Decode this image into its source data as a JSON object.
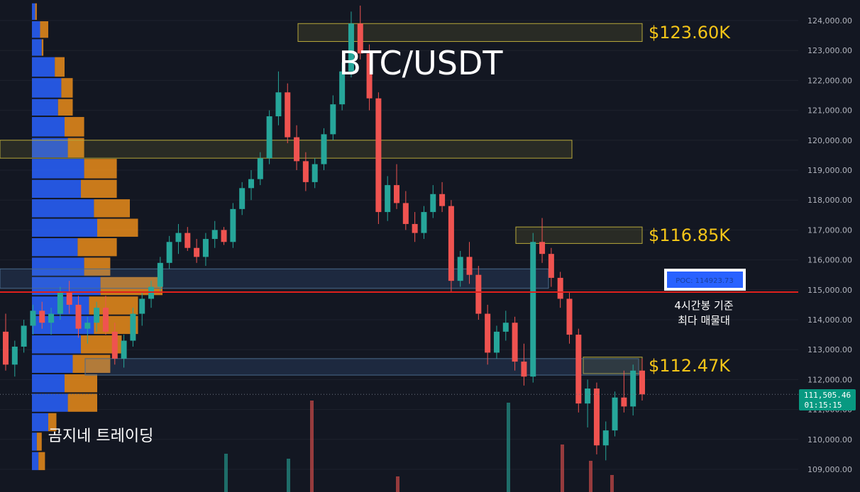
{
  "chart_data": {
    "type": "candlestick",
    "title": "BTC/USDT",
    "watermark": "곰지네 트레이딩",
    "y_axis": {
      "ylim": [
        108600,
        124700
      ],
      "ticks": [
        109000,
        110000,
        111000,
        112000,
        113000,
        114000,
        115000,
        116000,
        117000,
        118000,
        119000,
        120000,
        121000,
        122000,
        123000,
        124000
      ],
      "tick_labels": [
        "109,000.00",
        "110,000.00",
        "111,000.00",
        "112,000.00",
        "113,000.00",
        "114,000.00",
        "115,000.00",
        "116,000.00",
        "117,000.00",
        "118,000.00",
        "119,000.00",
        "120,000.00",
        "121,000.00",
        "122,000.00",
        "123,000.00",
        "124,000.00"
      ]
    },
    "current_price": {
      "value": 111505.46,
      "label": "111,505.46",
      "countdown": "01:15:15",
      "color": "#089981"
    },
    "poc": {
      "value": 114923.73,
      "label": "POC: 114923.73",
      "note_line1": "4시간봉 기준",
      "note_line2": "최다 매물대",
      "line_color": "#e0201c",
      "box_color": "#2962ff"
    },
    "levels": [
      {
        "label": "$123.60K",
        "value": 123600
      },
      {
        "label": "$116.85K",
        "value": 116850
      },
      {
        "label": "$112.47K",
        "value": 112470
      }
    ],
    "zones": [
      {
        "low": 123300,
        "high": 123900,
        "color": "yellow"
      },
      {
        "low": 119400,
        "high": 120000,
        "color": "yellow"
      },
      {
        "low": 116550,
        "high": 117100,
        "color": "yellow"
      },
      {
        "low": 112200,
        "high": 112750,
        "color": "yellow"
      },
      {
        "low": 115050,
        "high": 115700,
        "color": "blue"
      },
      {
        "low": 112150,
        "high": 112700,
        "color": "blue"
      }
    ],
    "volume_profile": [
      {
        "low": 124000,
        "high": 124600,
        "buy": 2,
        "sell": 3
      },
      {
        "low": 123400,
        "high": 124000,
        "buy": 5,
        "sell": 10
      },
      {
        "low": 122800,
        "high": 123400,
        "buy": 6,
        "sell": 7
      },
      {
        "low": 122100,
        "high": 122800,
        "buy": 14,
        "sell": 20
      },
      {
        "low": 121400,
        "high": 122100,
        "buy": 18,
        "sell": 25
      },
      {
        "low": 120800,
        "high": 121400,
        "buy": 16,
        "sell": 25
      },
      {
        "low": 120100,
        "high": 120800,
        "buy": 20,
        "sell": 32
      },
      {
        "low": 119400,
        "high": 120100,
        "buy": 22,
        "sell": 32
      },
      {
        "low": 118700,
        "high": 119400,
        "buy": 32,
        "sell": 52
      },
      {
        "low": 118050,
        "high": 118700,
        "buy": 30,
        "sell": 52
      },
      {
        "low": 117400,
        "high": 118050,
        "buy": 38,
        "sell": 60
      },
      {
        "low": 116750,
        "high": 117400,
        "buy": 40,
        "sell": 65
      },
      {
        "low": 116100,
        "high": 116750,
        "buy": 28,
        "sell": 52
      },
      {
        "low": 115450,
        "high": 116100,
        "buy": 32,
        "sell": 48
      },
      {
        "low": 114800,
        "high": 115450,
        "buy": 42,
        "sell": 80
      },
      {
        "low": 114150,
        "high": 114800,
        "buy": 35,
        "sell": 65
      },
      {
        "low": 113500,
        "high": 114150,
        "buy": 38,
        "sell": 65
      },
      {
        "low": 112850,
        "high": 113500,
        "buy": 30,
        "sell": 55
      },
      {
        "low": 112200,
        "high": 112850,
        "buy": 25,
        "sell": 48
      },
      {
        "low": 111550,
        "high": 112200,
        "buy": 20,
        "sell": 40
      },
      {
        "low": 110900,
        "high": 111550,
        "buy": 22,
        "sell": 40
      },
      {
        "low": 110250,
        "high": 110900,
        "buy": 10,
        "sell": 15
      },
      {
        "low": 109600,
        "high": 110250,
        "buy": 3,
        "sell": 6
      },
      {
        "low": 108950,
        "high": 109600,
        "buy": 4,
        "sell": 8
      }
    ],
    "candles": [
      [
        113600,
        114200,
        112300,
        112500
      ],
      [
        112500,
        113300,
        112100,
        113100
      ],
      [
        113100,
        114000,
        112900,
        113800
      ],
      [
        113800,
        114500,
        113500,
        114300
      ],
      [
        114300,
        114600,
        113700,
        113900
      ],
      [
        113900,
        114400,
        113500,
        114200
      ],
      [
        114200,
        115100,
        114000,
        114900
      ],
      [
        114900,
        115300,
        114200,
        114500
      ],
      [
        114500,
        114800,
        113400,
        113700
      ],
      [
        113700,
        114100,
        113200,
        113900
      ],
      [
        113900,
        114600,
        113600,
        114400
      ],
      [
        114400,
        114800,
        113500,
        113600
      ],
      [
        113600,
        113900,
        112500,
        112700
      ],
      [
        112700,
        113500,
        112400,
        113300
      ],
      [
        113300,
        114400,
        113100,
        114200
      ],
      [
        114200,
        114900,
        113800,
        114700
      ],
      [
        114700,
        115300,
        114400,
        115100
      ],
      [
        115100,
        116100,
        114900,
        115900
      ],
      [
        115900,
        116800,
        115700,
        116600
      ],
      [
        116600,
        117200,
        116200,
        116900
      ],
      [
        116900,
        117100,
        116300,
        116400
      ],
      [
        116400,
        116700,
        115900,
        116100
      ],
      [
        116100,
        116900,
        115800,
        116700
      ],
      [
        116700,
        117300,
        116400,
        117000
      ],
      [
        117000,
        117100,
        116500,
        116600
      ],
      [
        116600,
        117900,
        116400,
        117700
      ],
      [
        117700,
        118600,
        117500,
        118400
      ],
      [
        118400,
        119000,
        118000,
        118700
      ],
      [
        118700,
        119600,
        118500,
        119400
      ],
      [
        119400,
        121000,
        119200,
        120800
      ],
      [
        120800,
        122300,
        120500,
        121600
      ],
      [
        121600,
        121900,
        119900,
        120100
      ],
      [
        120100,
        120500,
        119000,
        119300
      ],
      [
        119300,
        119600,
        118300,
        118600
      ],
      [
        118600,
        119400,
        118400,
        119200
      ],
      [
        119200,
        120400,
        119000,
        120200
      ],
      [
        120200,
        121500,
        120000,
        121200
      ],
      [
        121200,
        122600,
        121000,
        122300
      ],
      [
        122300,
        124300,
        122100,
        123900
      ],
      [
        123900,
        124500,
        122700,
        122900
      ],
      [
        122900,
        123200,
        121000,
        121400
      ],
      [
        121400,
        121600,
        117200,
        117600
      ],
      [
        117600,
        118800,
        117300,
        118500
      ],
      [
        118500,
        119200,
        117700,
        117900
      ],
      [
        117900,
        118300,
        117000,
        117200
      ],
      [
        117200,
        117600,
        116600,
        116900
      ],
      [
        116900,
        117800,
        116700,
        117600
      ],
      [
        117600,
        118500,
        117400,
        118200
      ],
      [
        118200,
        118600,
        117600,
        117800
      ],
      [
        117800,
        118000,
        114900,
        115300
      ],
      [
        115300,
        116300,
        115100,
        116100
      ],
      [
        116100,
        116600,
        115200,
        115500
      ],
      [
        115500,
        115800,
        114000,
        114200
      ],
      [
        114200,
        114500,
        112500,
        112900
      ],
      [
        112900,
        113800,
        112700,
        113600
      ],
      [
        113600,
        114300,
        113300,
        113900
      ],
      [
        113900,
        114100,
        112300,
        112600
      ],
      [
        112600,
        113200,
        111800,
        112100
      ],
      [
        112100,
        116900,
        111900,
        116600
      ],
      [
        116600,
        117400,
        115900,
        116200
      ],
      [
        116200,
        116400,
        115100,
        115400
      ],
      [
        115400,
        115600,
        114400,
        114700
      ],
      [
        114700,
        114900,
        113200,
        113500
      ],
      [
        113500,
        113700,
        110900,
        111200
      ],
      [
        111200,
        112000,
        110400,
        111700
      ],
      [
        111700,
        111900,
        109500,
        109800
      ],
      [
        109800,
        110600,
        109300,
        110300
      ],
      [
        110300,
        111600,
        110100,
        111400
      ],
      [
        111400,
        112300,
        110900,
        111100
      ],
      [
        111100,
        112500,
        110800,
        112300
      ],
      [
        112300,
        112700,
        111300,
        111505
      ]
    ],
    "volume_bars": [
      {
        "x": 316,
        "top": 640,
        "color": "#26a69a"
      },
      {
        "x": 437,
        "top": 565,
        "color": "#ef5350"
      },
      {
        "x": 404,
        "top": 647,
        "color": "#26a69a"
      },
      {
        "x": 558,
        "top": 672,
        "color": "#ef5350"
      },
      {
        "x": 714,
        "top": 568,
        "color": "#26a69a"
      },
      {
        "x": 790,
        "top": 627,
        "color": "#ef5350"
      },
      {
        "x": 830,
        "top": 650,
        "color": "#ef5350"
      },
      {
        "x": 860,
        "top": 670,
        "color": "#ef5350"
      }
    ]
  }
}
